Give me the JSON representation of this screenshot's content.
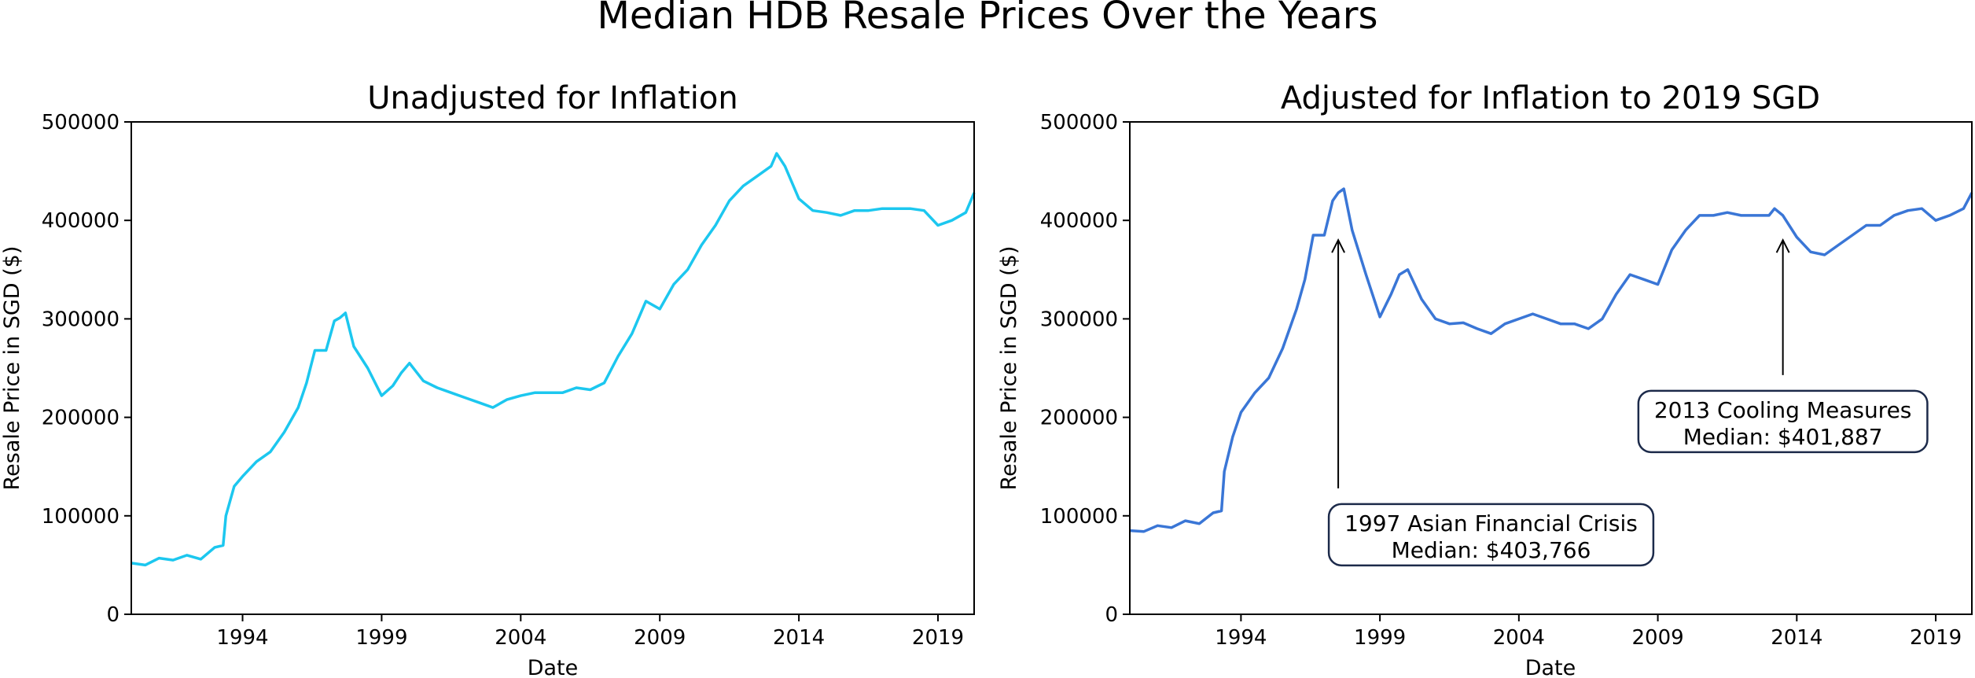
{
  "suptitle": "Median HDB Resale Prices Over the Years",
  "chart_data": [
    {
      "type": "line",
      "title": "Unadjusted for Inflation",
      "xlabel": "Date",
      "ylabel": "Resale Price in SGD ($)",
      "xlim": [
        1990.0,
        2020.3
      ],
      "ylim": [
        0,
        500000
      ],
      "xticks": [
        "1994",
        "1999",
        "2004",
        "2009",
        "2014",
        "2019"
      ],
      "yticks": [
        "0",
        "100000",
        "200000",
        "300000",
        "400000",
        "500000"
      ],
      "grid": false,
      "color": "#1cc7ef",
      "x": [
        1990.0,
        1990.5,
        1991.0,
        1991.5,
        1992.0,
        1992.5,
        1993.0,
        1993.3,
        1993.4,
        1993.7,
        1994.0,
        1994.5,
        1995.0,
        1995.5,
        1996.0,
        1996.3,
        1996.6,
        1997.0,
        1997.3,
        1997.5,
        1997.7,
        1998.0,
        1998.5,
        1999.0,
        1999.4,
        1999.7,
        2000.0,
        2000.5,
        2001.0,
        2001.5,
        2002.0,
        2002.5,
        2003.0,
        2003.5,
        2004.0,
        2004.5,
        2005.0,
        2005.5,
        2006.0,
        2006.5,
        2007.0,
        2007.5,
        2008.0,
        2008.5,
        2009.0,
        2009.5,
        2010.0,
        2010.5,
        2011.0,
        2011.5,
        2012.0,
        2012.5,
        2013.0,
        2013.2,
        2013.5,
        2014.0,
        2014.5,
        2015.0,
        2015.5,
        2016.0,
        2016.5,
        2017.0,
        2017.5,
        2018.0,
        2018.5,
        2019.0,
        2019.5,
        2020.0,
        2020.3
      ],
      "y": [
        52000,
        50000,
        57000,
        55000,
        60000,
        56000,
        68000,
        70000,
        100000,
        130000,
        140000,
        155000,
        165000,
        185000,
        210000,
        235000,
        268000,
        268000,
        298000,
        301000,
        306000,
        272000,
        250000,
        222000,
        232000,
        245000,
        255000,
        237000,
        230000,
        225000,
        220000,
        215000,
        210000,
        218000,
        222000,
        225000,
        225000,
        225000,
        230000,
        228000,
        235000,
        262000,
        285000,
        318000,
        310000,
        335000,
        350000,
        375000,
        395000,
        420000,
        435000,
        445000,
        455000,
        468000,
        455000,
        422000,
        410000,
        408000,
        405000,
        410000,
        410000,
        412000,
        412000,
        412000,
        410000,
        395000,
        400000,
        408000,
        428000
      ]
    },
    {
      "type": "line",
      "title": "Adjusted for Inflation to 2019 SGD",
      "xlabel": "Date",
      "ylabel": "Resale Price in SGD ($)",
      "xlim": [
        1990.0,
        2020.3
      ],
      "ylim": [
        0,
        500000
      ],
      "xticks": [
        "1994",
        "1999",
        "2004",
        "2009",
        "2014",
        "2019"
      ],
      "yticks": [
        "0",
        "100000",
        "200000",
        "300000",
        "400000",
        "500000"
      ],
      "grid": false,
      "color": "#3a76d6",
      "x": [
        1990.0,
        1990.5,
        1991.0,
        1991.5,
        1992.0,
        1992.5,
        1993.0,
        1993.3,
        1993.4,
        1993.7,
        1994.0,
        1994.5,
        1995.0,
        1995.5,
        1996.0,
        1996.3,
        1996.6,
        1997.0,
        1997.3,
        1997.5,
        1997.7,
        1998.0,
        1998.5,
        1999.0,
        1999.4,
        1999.7,
        2000.0,
        2000.5,
        2001.0,
        2001.5,
        2002.0,
        2002.5,
        2003.0,
        2003.5,
        2004.0,
        2004.5,
        2005.0,
        2005.5,
        2006.0,
        2006.5,
        2007.0,
        2007.5,
        2008.0,
        2008.5,
        2009.0,
        2009.5,
        2010.0,
        2010.5,
        2011.0,
        2011.5,
        2012.0,
        2012.5,
        2013.0,
        2013.2,
        2013.5,
        2014.0,
        2014.5,
        2015.0,
        2015.5,
        2016.0,
        2016.5,
        2017.0,
        2017.5,
        2018.0,
        2018.5,
        2019.0,
        2019.5,
        2020.0,
        2020.3
      ],
      "y": [
        85000,
        84000,
        90000,
        88000,
        95000,
        92000,
        103000,
        105000,
        145000,
        180000,
        205000,
        225000,
        240000,
        270000,
        310000,
        340000,
        385000,
        385000,
        420000,
        428000,
        432000,
        390000,
        345000,
        302000,
        325000,
        345000,
        350000,
        320000,
        300000,
        295000,
        296000,
        290000,
        285000,
        295000,
        300000,
        305000,
        300000,
        295000,
        295000,
        290000,
        300000,
        325000,
        345000,
        340000,
        335000,
        370000,
        390000,
        405000,
        405000,
        408000,
        405000,
        405000,
        405000,
        412000,
        405000,
        383000,
        368000,
        365000,
        375000,
        385000,
        395000,
        395000,
        405000,
        410000,
        412000,
        400000,
        405000,
        412000,
        428000
      ],
      "annotations": [
        {
          "line1": "1997 Asian Financial Crisis",
          "line2": "Median: $403,766",
          "x": 1997.5,
          "y": 380000,
          "box_x": 2003.0,
          "box_y": 80000
        },
        {
          "line1": "2013 Cooling Measures",
          "line2": "Median: $401,887",
          "x": 2013.5,
          "y": 380000,
          "box_x": 2013.5,
          "box_y": 195000
        }
      ]
    }
  ]
}
